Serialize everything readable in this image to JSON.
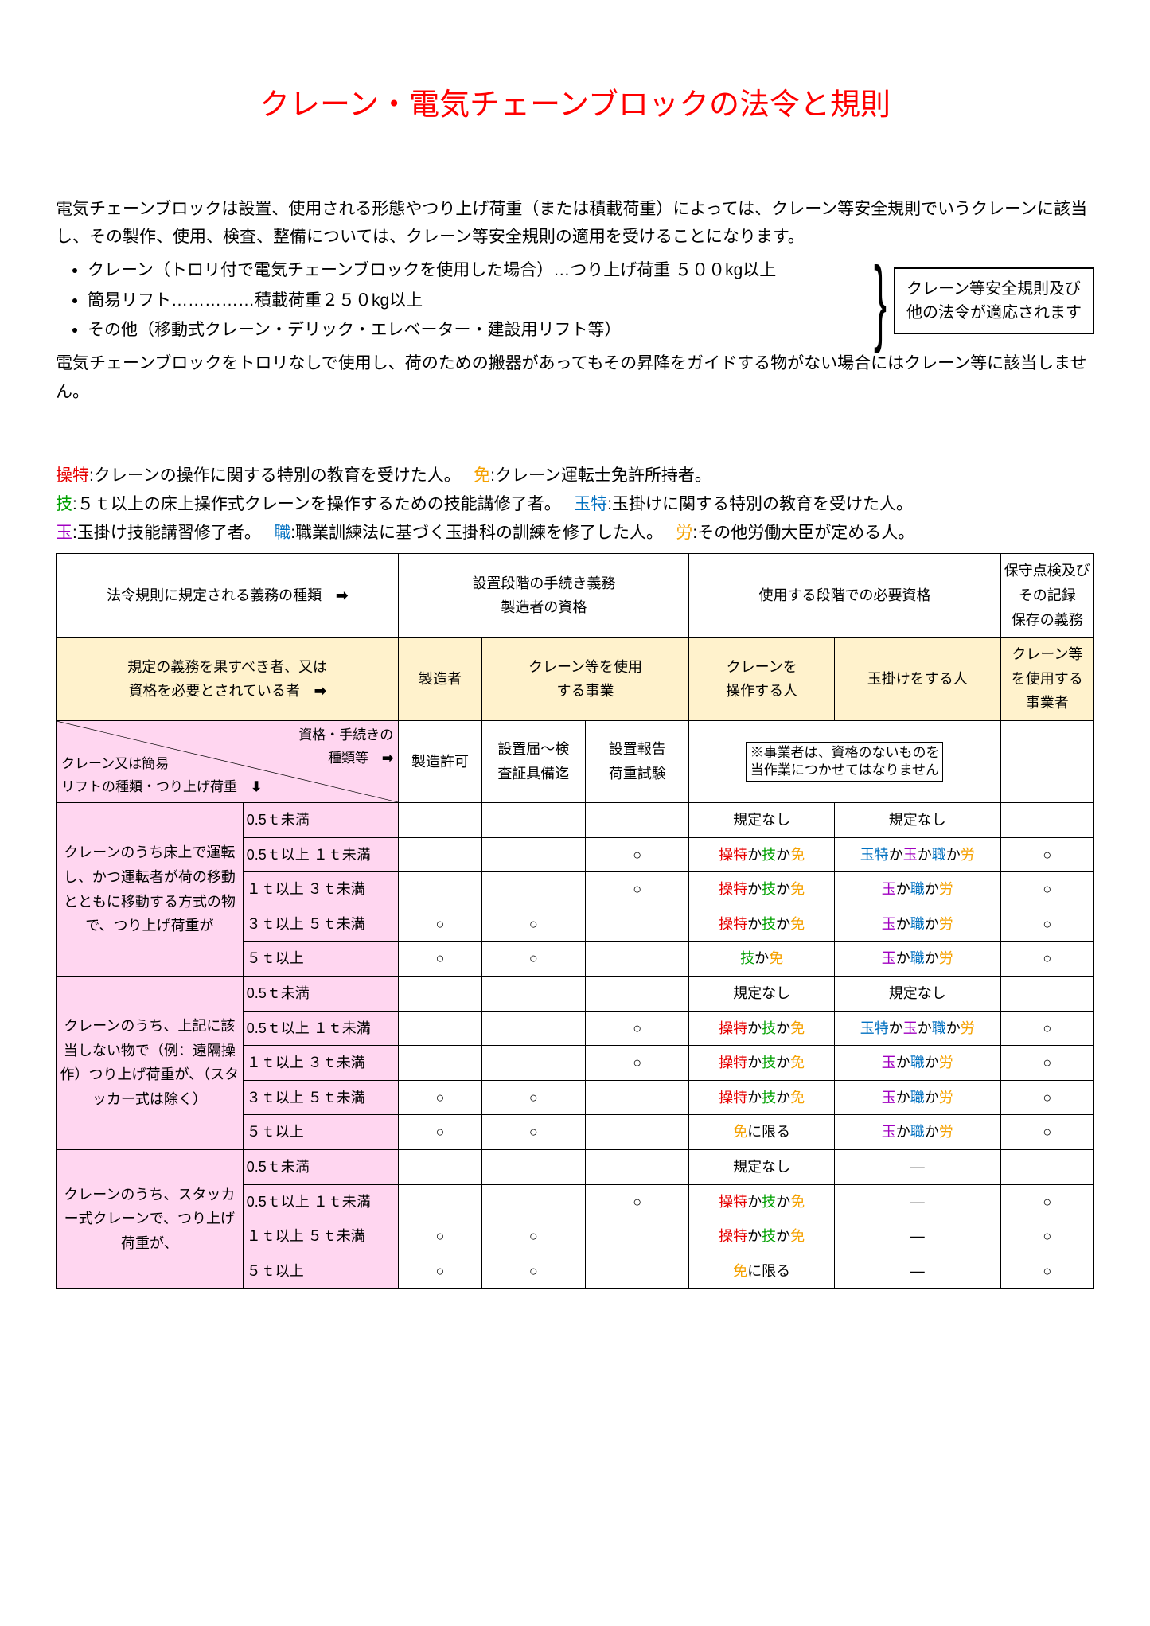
{
  "title": "クレーン・電気チェーンブロックの法令と規則",
  "intro1": "電気チェーンブロックは設置、使用される形態やつり上げ荷重（または積載荷重）によっては、クレーン等安全規則でいうクレーンに該当し、その製作、使用、検査、整備については、クレーン等安全規則の適用を受けることになります。",
  "bullets": [
    "クレーン（トロリ付で電気チェーンブロックを使用した場合）…つり上げ荷重 ５００kg以上",
    "簡易リフト……………積載荷重２５０kg以上",
    "その他（移動式クレーン・デリック・エレベーター・建設用リフト等）"
  ],
  "notebox": "クレーン等安全規則及び\n他の法令が適応されます",
  "intro2": "電気チェーンブロックをトロリなしで使用し、荷のための搬器があってもその昇降をガイドする物がない場合にはクレーン等に該当しません。",
  "legend": {
    "l1": {
      "a": "操特",
      "at": ":クレーンの操作に関する特別の教育を受けた人。　",
      "b": "免",
      "bt": ":クレーン運転士免許所持者。"
    },
    "l2": {
      "a": "技",
      "at": ":５ｔ以上の床上操作式クレーンを操作するための技能講修了者。　",
      "b": "玉特",
      "bt": ":玉掛けに関する特別の教育を受けた人。"
    },
    "l3": {
      "a": "玉",
      "at": ":玉掛け技能講習修了者。　",
      "b": "職",
      "bt": ":職業訓練法に基づく玉掛科の訓練を修了した人。　",
      "c": "労",
      "ct": ":その他労働大臣が定める人。"
    }
  },
  "header1": {
    "c1": "法令規則に規定される義務の種類　",
    "c2": "設置段階の手続き義務\n製造者の資格",
    "c3": "使用する段階での必要資格",
    "c4": "保守点検及び\nその記録\n保存の義務"
  },
  "header2": {
    "c1": "規定の義務を果すべき者、又は\n資格を必要とされている者　",
    "c2": "製造者",
    "c3": "クレーン等を使用\nする事業",
    "c4": "クレーンを\n操作する人",
    "c5": "玉掛けをする人",
    "c6": "クレーン等\nを使用する\n事業者"
  },
  "header3": {
    "tr": "資格・手続きの\n種類等　",
    "bl": "クレーン又は簡易\nリフトの種類・つり上げ荷重　",
    "c2": "製造許可",
    "c3": "設置届～検\n査証具備迄",
    "c4": "設置報告\n荷重試験",
    "c5": "※事業者は、資格のないものを\n当作業につかせてはなりません"
  },
  "groups": [
    {
      "label": "クレーンのうち床上で運転し、かつ運転者が荷の移動とともに移動する方式の物で、つり上げ荷重が",
      "rows": [
        {
          "r": "0.5ｔ未満",
          "cells": [
            "",
            "",
            "",
            "規定なし",
            "規定なし",
            ""
          ]
        },
        {
          "r": "0.5ｔ以上 １ｔ未満",
          "cells": [
            "",
            "",
            "○",
            "SKM",
            "TTM",
            "○"
          ]
        },
        {
          "r": "１ｔ以上 ３ｔ未満",
          "cells": [
            "",
            "",
            "○",
            "SKM",
            "TSR",
            "○"
          ]
        },
        {
          "r": "３ｔ以上 ５ｔ未満",
          "cells": [
            "○",
            "○",
            "",
            "SKM",
            "TSR",
            "○"
          ]
        },
        {
          "r": "５ｔ以上",
          "cells": [
            "○",
            "○",
            "",
            "GM",
            "TSR",
            "○"
          ]
        }
      ]
    },
    {
      "label": "クレーンのうち、上記に該当しない物で（例：遠隔操作）つり上げ荷重が、（スタッカー式は除く）",
      "rows": [
        {
          "r": "0.5ｔ未満",
          "cells": [
            "",
            "",
            "",
            "規定なし",
            "規定なし",
            ""
          ]
        },
        {
          "r": "0.5ｔ以上 １ｔ未満",
          "cells": [
            "",
            "",
            "○",
            "SKM",
            "TTM",
            "○"
          ]
        },
        {
          "r": "１ｔ以上 ３ｔ未満",
          "cells": [
            "",
            "",
            "○",
            "SKM",
            "TSR",
            "○"
          ]
        },
        {
          "r": "３ｔ以上 ５ｔ未満",
          "cells": [
            "○",
            "○",
            "",
            "SKM",
            "TSR",
            "○"
          ]
        },
        {
          "r": "５ｔ以上",
          "cells": [
            "○",
            "○",
            "",
            "ML",
            "TSR",
            "○"
          ]
        }
      ]
    },
    {
      "label": "クレーンのうち、スタッカー式クレーンで、つり上げ荷重が、",
      "rows": [
        {
          "r": "0.5ｔ未満",
          "cells": [
            "",
            "",
            "",
            "規定なし",
            "—",
            ""
          ]
        },
        {
          "r": "0.5ｔ以上 １ｔ未満",
          "cells": [
            "",
            "",
            "○",
            "SKM",
            "—",
            "○"
          ]
        },
        {
          "r": "１ｔ以上 ５ｔ未満",
          "cells": [
            "○",
            "○",
            "",
            "SKM",
            "—",
            "○"
          ]
        },
        {
          "r": "５ｔ以上",
          "cells": [
            "○",
            "○",
            "",
            "ML",
            "—",
            "○"
          ]
        }
      ]
    }
  ],
  "codes": {
    "SKM": [
      {
        "t": "操特",
        "c": "c-red"
      },
      {
        "t": "か"
      },
      {
        "t": "技",
        "c": "c-green"
      },
      {
        "t": "か"
      },
      {
        "t": "免",
        "c": "c-orange"
      }
    ],
    "GM": [
      {
        "t": "技",
        "c": "c-green"
      },
      {
        "t": "か"
      },
      {
        "t": "免",
        "c": "c-orange"
      }
    ],
    "ML": [
      {
        "t": "免",
        "c": "c-orange"
      },
      {
        "t": "に限る"
      }
    ],
    "TTM": [
      {
        "t": "玉特",
        "c": "c-blue"
      },
      {
        "t": "か"
      },
      {
        "t": "玉",
        "c": "c-purple"
      },
      {
        "t": "か"
      },
      {
        "t": "職",
        "c": "c-blue"
      },
      {
        "t": "か"
      },
      {
        "t": "労",
        "c": "c-orange"
      }
    ],
    "TSR": [
      {
        "t": "玉",
        "c": "c-purple"
      },
      {
        "t": "か"
      },
      {
        "t": "職",
        "c": "c-blue"
      },
      {
        "t": "か"
      },
      {
        "t": "労",
        "c": "c-orange"
      }
    ]
  },
  "colwidths": [
    "18%",
    "15%",
    "8%",
    "10%",
    "10%",
    "14%",
    "16%",
    "9%"
  ]
}
